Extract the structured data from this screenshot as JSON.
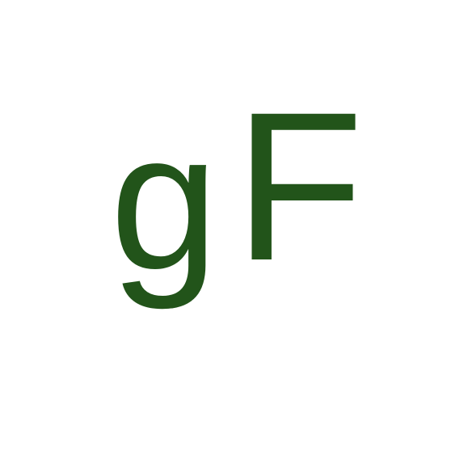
{
  "logo": {
    "letter_g": "g",
    "letter_f": "F",
    "color": "#22541a",
    "background": "#ffffff"
  }
}
